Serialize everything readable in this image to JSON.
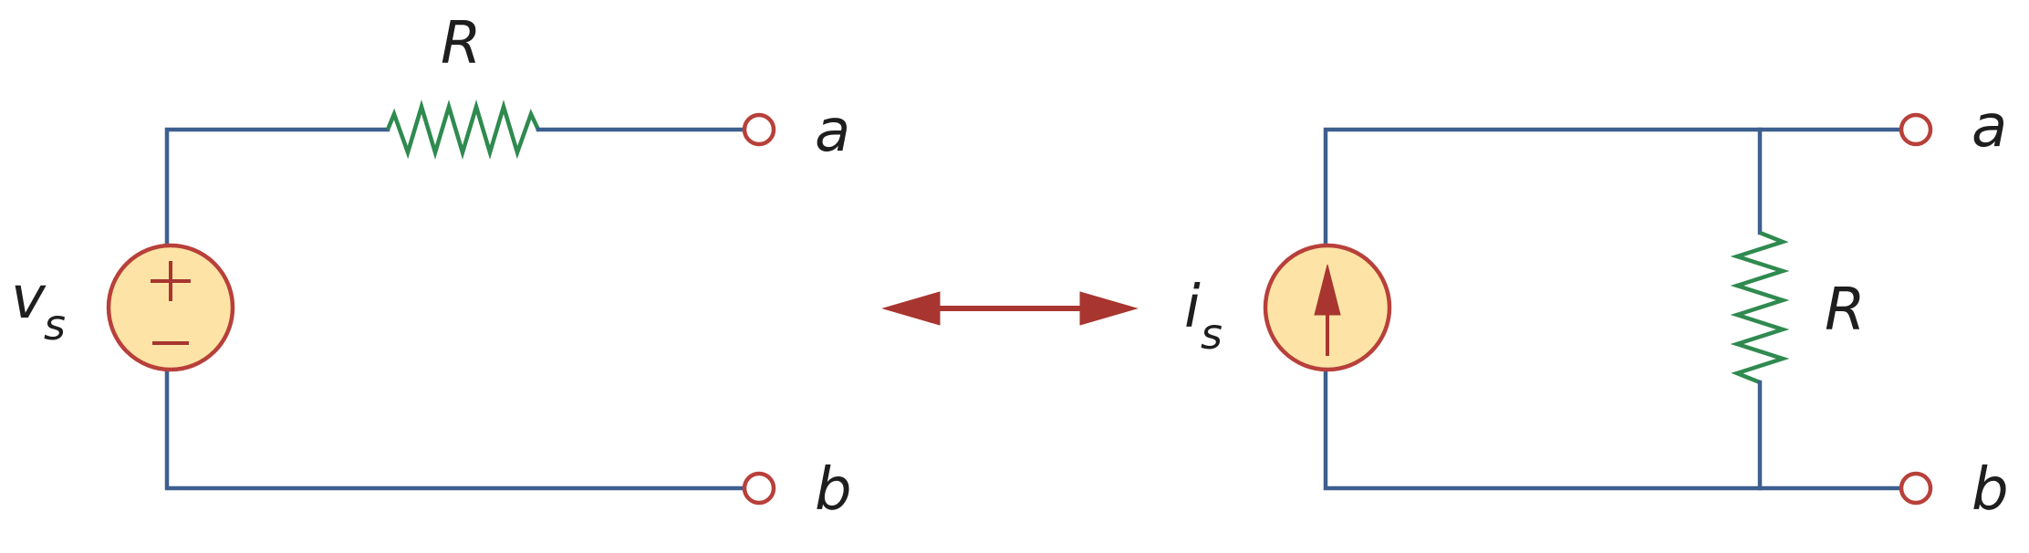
{
  "left_circuit": {
    "source_symbol": "v",
    "source_subscript": "s",
    "resistor_label": "R",
    "terminal_top": "a",
    "terminal_bottom": "b"
  },
  "right_circuit": {
    "source_symbol": "i",
    "source_subscript": "s",
    "resistor_label": "R",
    "terminal_top": "a",
    "terminal_bottom": "b"
  },
  "colors": {
    "wire": "#3d5f8f",
    "resistor": "#2f8a4f",
    "source_fill": "#fde4a6",
    "source_stroke": "#b8403a",
    "arrow": "#a8352f"
  }
}
